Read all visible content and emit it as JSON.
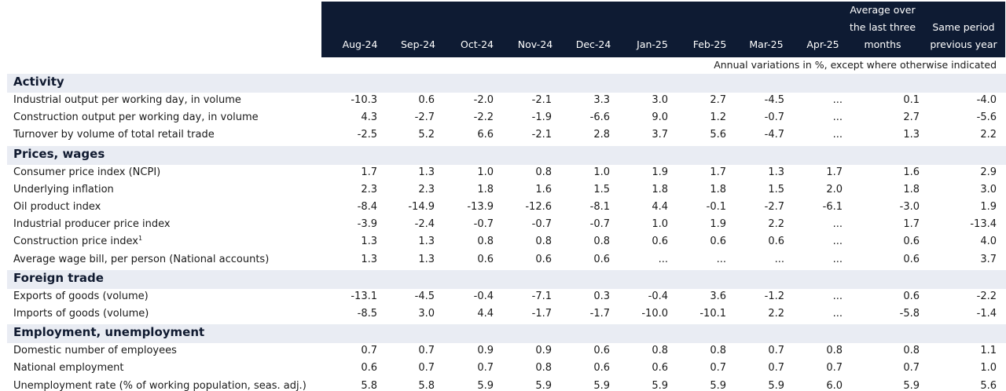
{
  "table": {
    "columns": [
      "Aug-24",
      "Sep-24",
      "Oct-24",
      "Nov-24",
      "Dec-24",
      "Jan-25",
      "Feb-25",
      "Mar-25",
      "Apr-25"
    ],
    "avg_header": [
      "Average over",
      "the last three",
      "months"
    ],
    "prev_header": [
      "Same period",
      "previous year"
    ],
    "note": "Annual variations in %, except where otherwise indicated",
    "sections": [
      {
        "title": "Activity",
        "rows": [
          {
            "label": "Industrial output per working day, in volume",
            "sup": "",
            "values": [
              "-10.3",
              "0.6",
              "-2.0",
              "-2.1",
              "3.3",
              "3.0",
              "2.7",
              "-4.5",
              "...",
              "0.1",
              "-4.0"
            ]
          },
          {
            "label": "Construction output per working day, in volume",
            "sup": "",
            "values": [
              "4.3",
              "-2.7",
              "-2.2",
              "-1.9",
              "-6.6",
              "9.0",
              "1.2",
              "-0.7",
              "...",
              "2.7",
              "-5.6"
            ]
          },
          {
            "label": "Turnover by volume of total retail trade",
            "sup": "",
            "values": [
              "-2.5",
              "5.2",
              "6.6",
              "-2.1",
              "2.8",
              "3.7",
              "5.6",
              "-4.7",
              "...",
              "1.3",
              "2.2"
            ]
          }
        ]
      },
      {
        "title": "Prices, wages",
        "rows": [
          {
            "label": "Consumer price index (NCPI)",
            "sup": "",
            "values": [
              "1.7",
              "1.3",
              "1.0",
              "0.8",
              "1.0",
              "1.9",
              "1.7",
              "1.3",
              "1.7",
              "1.6",
              "2.9"
            ]
          },
          {
            "label": "Underlying inflation",
            "sup": "",
            "values": [
              "2.3",
              "2.3",
              "1.8",
              "1.6",
              "1.5",
              "1.8",
              "1.8",
              "1.5",
              "2.0",
              "1.8",
              "3.0"
            ]
          },
          {
            "label": "Oil product index",
            "sup": "",
            "values": [
              "-8.4",
              "-14.9",
              "-13.9",
              "-12.6",
              "-8.1",
              "4.4",
              "-0.1",
              "-2.7",
              "-6.1",
              "-3.0",
              "1.9"
            ]
          },
          {
            "label": "Industrial producer price index",
            "sup": "",
            "values": [
              "-3.9",
              "-2.4",
              "-0.7",
              "-0.7",
              "-0.7",
              "1.0",
              "1.9",
              "2.2",
              "...",
              "1.7",
              "-13.4"
            ]
          },
          {
            "label": "Construction price index",
            "sup": "1",
            "values": [
              "1.3",
              "1.3",
              "0.8",
              "0.8",
              "0.8",
              "0.6",
              "0.6",
              "0.6",
              "...",
              "0.6",
              "4.0"
            ]
          },
          {
            "label": "Average wage bill, per person (National accounts)",
            "sup": "",
            "values": [
              "1.3",
              "1.3",
              "0.6",
              "0.6",
              "0.6",
              "...",
              "...",
              "...",
              "...",
              "0.6",
              "3.7"
            ]
          }
        ]
      },
      {
        "title": "Foreign trade",
        "rows": [
          {
            "label": "Exports of goods (volume)",
            "sup": "",
            "values": [
              "-13.1",
              "-4.5",
              "-0.4",
              "-7.1",
              "0.3",
              "-0.4",
              "3.6",
              "-1.2",
              "...",
              "0.6",
              "-2.2"
            ]
          },
          {
            "label": "Imports of goods (volume)",
            "sup": "",
            "values": [
              "-8.5",
              "3.0",
              "4.4",
              "-1.7",
              "-1.7",
              "-10.0",
              "-10.1",
              "2.2",
              "...",
              "-5.8",
              "-1.4"
            ]
          }
        ]
      },
      {
        "title": "Employment, unemployment",
        "rows": [
          {
            "label": "Domestic number of employees",
            "sup": "",
            "values": [
              "0.7",
              "0.7",
              "0.9",
              "0.9",
              "0.6",
              "0.8",
              "0.8",
              "0.7",
              "0.8",
              "0.8",
              "1.1"
            ]
          },
          {
            "label": "National employment",
            "sup": "",
            "values": [
              "0.6",
              "0.7",
              "0.7",
              "0.8",
              "0.6",
              "0.6",
              "0.7",
              "0.7",
              "0.7",
              "0.7",
              "1.0"
            ]
          },
          {
            "label": "Unemployment rate (% of working population, seas. adj.)",
            "sup": "",
            "values": [
              "5.8",
              "5.8",
              "5.9",
              "5.9",
              "5.9",
              "5.9",
              "5.9",
              "5.9",
              "6.0",
              "5.9",
              "5.6"
            ]
          }
        ]
      }
    ]
  }
}
